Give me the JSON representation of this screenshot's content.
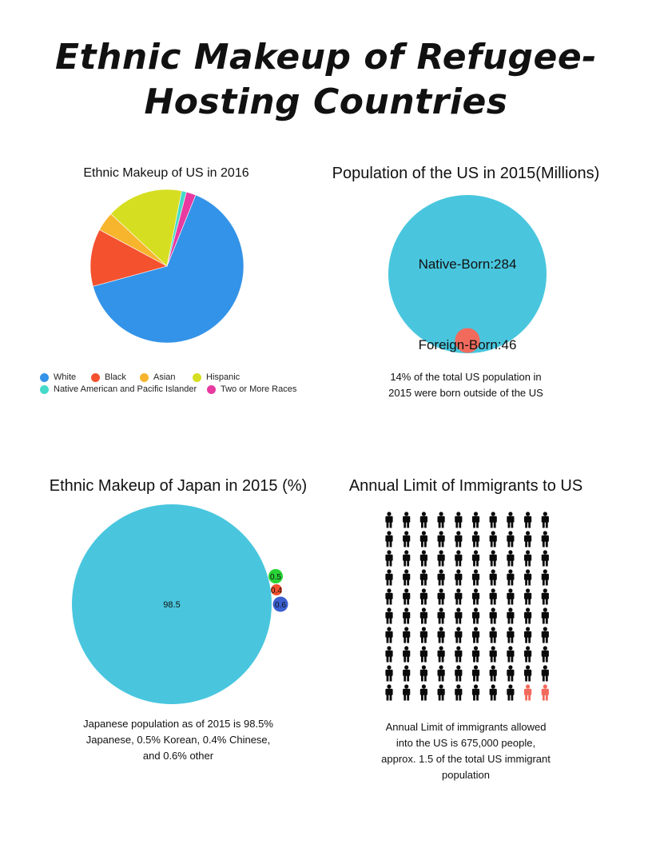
{
  "page_title_line1": "Ethnic Makeup of Refugee-",
  "page_title_line2": "Hosting Countries",
  "chart_data": [
    {
      "type": "pie",
      "title": "Ethnic Makeup of US in 2016",
      "categories": [
        "White",
        "Black",
        "Asian",
        "Hispanic",
        "Native American and Pacific Islander",
        "Two or More Races"
      ],
      "values": [
        64,
        12,
        4,
        16,
        1,
        2
      ],
      "colors": [
        "#3393e8",
        "#f4512f",
        "#f7b42d",
        "#d6de22",
        "#44d9c8",
        "#e83aa0"
      ],
      "legend_position": "bottom"
    },
    {
      "type": "bubble",
      "title": "Population of the US in 2015(Millions)",
      "categories": [
        "Native-Born",
        "Foreign-Born"
      ],
      "values": [
        284,
        46
      ],
      "labels": [
        "Native-Born:284",
        "Foreign-Born:46"
      ],
      "colors": [
        "#49c6de",
        "#f26a5c"
      ]
    },
    {
      "type": "bubble",
      "title": "Ethnic Makeup of Japan in 2015 (%)",
      "values": [
        98.5,
        0.5,
        0.4,
        0.6
      ],
      "labels": [
        "98.5",
        "0.5",
        "0.4",
        "0.6"
      ],
      "colors": [
        "#49c6de",
        "#27d235",
        "#f4512f",
        "#3a5fd0"
      ]
    },
    {
      "type": "pictograph",
      "title": "Annual Limit of Immigrants to US",
      "rows": 10,
      "columns": 10,
      "highlighted": 2,
      "colors": [
        "#0a0a0a",
        "#f26a5c"
      ]
    }
  ],
  "captions": {
    "us_population": "14% of the total US population in 2015 were born outside of the US",
    "japan": "Japanese population as of 2015 is 98.5% Japanese, 0.5% Korean, 0.4% Chinese, and 0.6% other",
    "immigrants": "Annual Limit of immigrants allowed into the US is 675,000 people, approx. 1.5 of the total US immigrant population"
  }
}
